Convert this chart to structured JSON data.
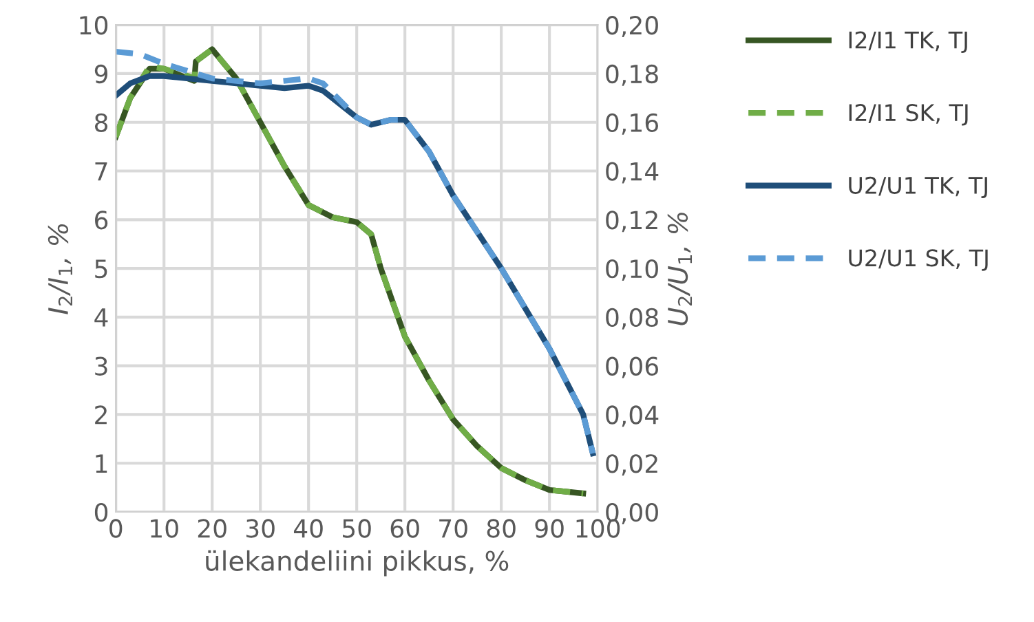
{
  "chart_data": {
    "type": "line",
    "xlabel": "ülekandeliini pikkus, %",
    "ylabel": "I$_{2}$/I$_{1}$, %",
    "y2label": "U$_{2}$/U$_{1}$, %",
    "xlim": [
      0,
      100
    ],
    "xticks": [
      0,
      10,
      20,
      30,
      40,
      50,
      60,
      70,
      80,
      90,
      100
    ],
    "ylim": [
      0,
      10
    ],
    "yticks": [
      0,
      1,
      2,
      3,
      4,
      5,
      6,
      7,
      8,
      9,
      10
    ],
    "y2lim": [
      0,
      0.2
    ],
    "y2ticks": [
      {
        "value": 0,
        "label": "0,00"
      },
      {
        "value": 0.02,
        "label": "0,02"
      },
      {
        "value": 0.04,
        "label": "0,04"
      },
      {
        "value": 0.06,
        "label": "0,06"
      },
      {
        "value": 0.08,
        "label": "0,08"
      },
      {
        "value": 0.1,
        "label": "0,10"
      },
      {
        "value": 0.12,
        "label": "0,12"
      },
      {
        "value": 0.14,
        "label": "0,14"
      },
      {
        "value": 0.16,
        "label": "0,16"
      },
      {
        "value": 0.18,
        "label": "0,18"
      },
      {
        "value": 0.2,
        "label": "0,20"
      }
    ],
    "grid": true,
    "legend": "top right",
    "marker": "none",
    "series": [
      {
        "name": "I2/I1 TK, TJ",
        "color": "#375623",
        "line_style": "solid",
        "x": [
          0,
          3,
          7,
          10,
          15,
          16.3,
          16.6,
          20,
          25,
          30,
          35,
          40,
          45,
          50,
          53,
          55,
          60,
          65,
          70,
          75,
          80,
          85,
          90,
          97
        ],
        "values": [
          7.7,
          8.5,
          9.1,
          9.1,
          8.9,
          8.85,
          9.25,
          9.5,
          8.9,
          8.0,
          7.1,
          6.3,
          6.05,
          5.95,
          5.7,
          5.0,
          3.6,
          2.7,
          1.9,
          1.35,
          0.9,
          0.65,
          0.45,
          0.38
        ]
      },
      {
        "name": "I2/I1 SK, TJ",
        "color": "#70ad47",
        "line_style": "dashed",
        "x": [
          0,
          3,
          7,
          10,
          15,
          16.3,
          16.6,
          20,
          25,
          30,
          35,
          40,
          45,
          50,
          53,
          55,
          60,
          65,
          70,
          75,
          80,
          85,
          90,
          97
        ],
        "values": [
          7.7,
          8.5,
          9.15,
          9.1,
          8.95,
          8.9,
          9.25,
          9.5,
          8.9,
          8.0,
          7.1,
          6.3,
          6.05,
          5.95,
          5.7,
          5.0,
          3.6,
          2.7,
          1.9,
          1.35,
          0.9,
          0.65,
          0.45,
          0.38
        ]
      },
      {
        "name": "U2/U1 TK, TJ",
        "color": "#1f4e79",
        "line_style": "solid",
        "axis": "y2",
        "x": [
          0,
          3,
          7,
          10,
          20,
          30,
          35,
          40,
          43,
          50,
          53,
          57,
          60,
          65,
          70,
          80,
          90,
          97,
          99
        ],
        "values": [
          0.171,
          0.176,
          0.179,
          0.179,
          0.177,
          0.175,
          0.174,
          0.175,
          0.173,
          0.162,
          0.159,
          0.161,
          0.161,
          0.148,
          0.13,
          0.1,
          0.067,
          0.04,
          0.024
        ]
      },
      {
        "name": "U2/U1 SK, TJ",
        "color": "#5b9bd5",
        "line_style": "dashed",
        "axis": "y2",
        "x": [
          0,
          5,
          10,
          20,
          30,
          40,
          43,
          50,
          53,
          57,
          60,
          65,
          70,
          80,
          90,
          97,
          99
        ],
        "values": [
          0.189,
          0.188,
          0.184,
          0.178,
          0.176,
          0.178,
          0.176,
          0.162,
          0.159,
          0.161,
          0.161,
          0.148,
          0.13,
          0.1,
          0.067,
          0.04,
          0.024
        ]
      }
    ]
  }
}
